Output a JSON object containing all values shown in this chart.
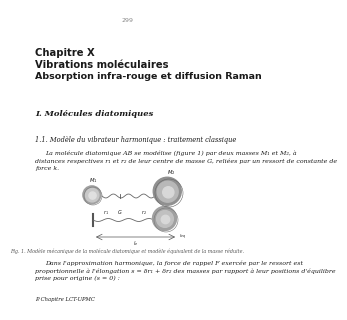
{
  "page_number": "299",
  "background_color": "#ffffff",
  "text_color": "#1a1a1a",
  "chapter_line": "Chapitre X",
  "title_line1": "Vibrations moléculaires",
  "title_line2": "Absorption infra-rouge et diffusion Raman",
  "section1": "I. Molécules diatomiques",
  "subsection1": "1.1. Modèle du vibrateur harmonique : traitement classique",
  "body1_l1": "La molécule diatomique AB se modélise (figure 1) par deux masses M₁ et M₂, à",
  "body1_l2": "distances respectives r₁ et r₂ de leur centre de masse G, reliées par un ressort de constante de",
  "body1_l3": "force k.",
  "fig_caption": "Fig. 1. Modèle mécanique de la molécule diatomique et modèle équivalent de la masse réduite.",
  "body2_l1": "Dans l'approximation harmonique, la force de rappel F exercée par le ressort est",
  "body2_l2": "proportionnelle à l'élongation s = δr₁ + δr₂ des masses par rapport à leur positions d'équilibre",
  "body2_l3": "prise pour origine (s = 0) :",
  "footer": "P. Chapitre LCT-UPMC"
}
